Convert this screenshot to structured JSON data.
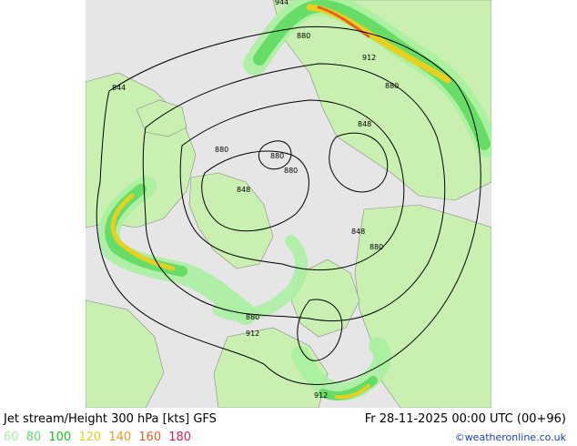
{
  "title": "Jet stream/Height 300 hPa [kts] GFS",
  "datetime": "Fr 28-11-2025 00:00 UTC (00+96)",
  "credit": "©weatheronline.co.uk",
  "legend": [
    {
      "value": "60",
      "color": "#a8f0a0"
    },
    {
      "value": "80",
      "color": "#66dd66"
    },
    {
      "value": "100",
      "color": "#22bb22"
    },
    {
      "value": "120",
      "color": "#e8d020"
    },
    {
      "value": "140",
      "color": "#f09a20"
    },
    {
      "value": "160",
      "color": "#e86020"
    },
    {
      "value": "180",
      "color": "#e02050"
    }
  ],
  "contour_labels": [
    "944",
    "880",
    "912",
    "880",
    "844",
    "848",
    "880",
    "880",
    "880",
    "848",
    "848",
    "880",
    "880",
    "912",
    "912"
  ],
  "colors": {
    "land": "#c9f0b0",
    "sea": "#e6e6e6",
    "border": "#8a8a8a",
    "contour": "#000000"
  }
}
